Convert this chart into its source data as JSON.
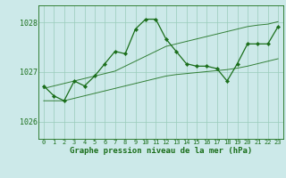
{
  "title": "Graphe pression niveau de la mer (hPa)",
  "bg_color": "#cce9e9",
  "grid_color": "#99ccbb",
  "line_color": "#1a6e1a",
  "x_ticks": [
    0,
    1,
    2,
    3,
    4,
    5,
    6,
    7,
    8,
    9,
    10,
    11,
    12,
    13,
    14,
    15,
    16,
    17,
    18,
    19,
    20,
    21,
    22,
    23
  ],
  "ylim": [
    1025.65,
    1028.35
  ],
  "yticks": [
    1026,
    1027,
    1028
  ],
  "main_series": [
    1026.72,
    1026.52,
    1026.42,
    1026.82,
    1026.72,
    1026.92,
    1027.17,
    1027.42,
    1027.37,
    1027.87,
    1028.07,
    1028.07,
    1027.67,
    1027.42,
    1027.17,
    1027.12,
    1027.12,
    1027.07,
    1026.82,
    1027.17,
    1027.57,
    1027.57,
    1027.57,
    1027.92
  ],
  "min_series": [
    1026.42,
    1026.42,
    1026.42,
    1026.47,
    1026.52,
    1026.57,
    1026.62,
    1026.67,
    1026.72,
    1026.77,
    1026.82,
    1026.87,
    1026.92,
    1026.95,
    1026.97,
    1026.99,
    1027.01,
    1027.03,
    1027.05,
    1027.08,
    1027.12,
    1027.17,
    1027.22,
    1027.27
  ],
  "max_series": [
    1026.67,
    1026.72,
    1026.77,
    1026.82,
    1026.87,
    1026.92,
    1026.97,
    1027.02,
    1027.12,
    1027.22,
    1027.32,
    1027.42,
    1027.52,
    1027.57,
    1027.62,
    1027.67,
    1027.72,
    1027.77,
    1027.82,
    1027.87,
    1027.92,
    1027.95,
    1027.97,
    1028.02
  ],
  "title_fontsize": 6.5,
  "tick_fontsize": 5.0,
  "ytick_fontsize": 6.0
}
